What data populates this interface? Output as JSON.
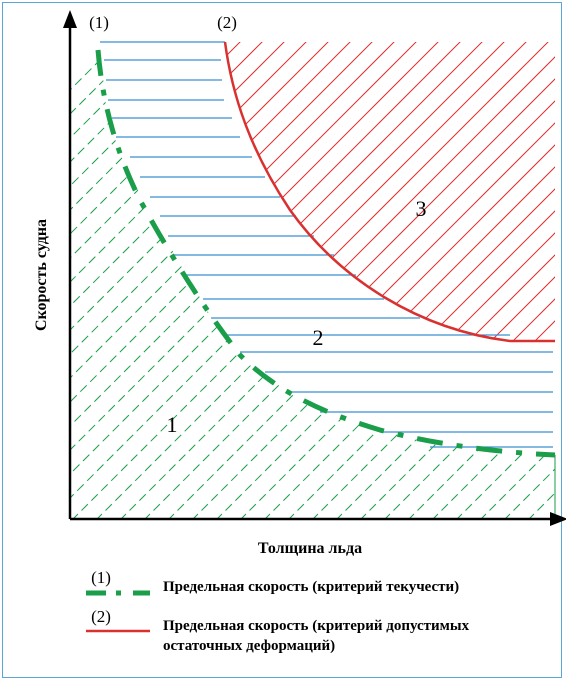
{
  "diagram": {
    "y_axis_label": "Скорость судна",
    "x_axis_label": "Толщина льда",
    "curve_1_label": "(1)",
    "curve_2_label": "(2)",
    "region_1_label": "1",
    "region_2_label": "2",
    "region_3_label": "3"
  },
  "legend": {
    "item_1_marker": "(1)",
    "item_1_text": "Предельная скорость (критерий текучести)",
    "item_2_marker": "(2)",
    "item_2_text_line1": "Предельная скорость (критерий допустимых",
    "item_2_text_line2": "остаточных деформаций)"
  },
  "colors": {
    "green": "#1a9e4a",
    "blue": "#3a8fd0",
    "red": "#d93030",
    "frame": "#5aa6d6"
  }
}
